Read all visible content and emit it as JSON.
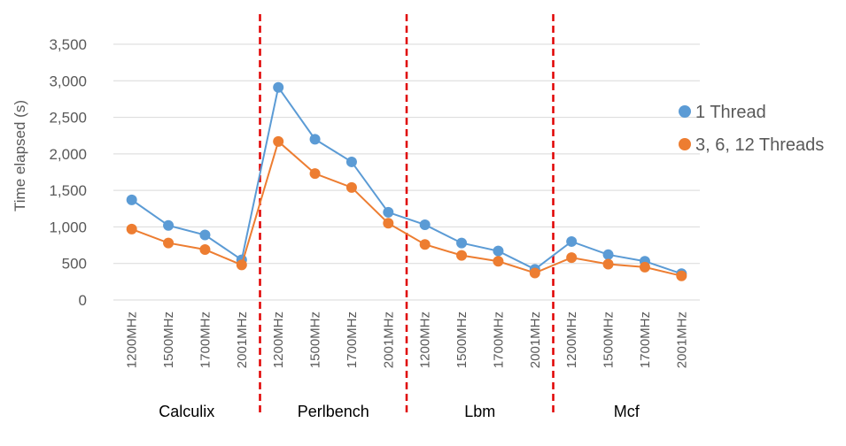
{
  "chart_data": {
    "type": "line",
    "ylabel": "Time elapsed (s)",
    "ylim": [
      0,
      3500
    ],
    "yticks": [
      "0",
      "500",
      "1,000",
      "1,500",
      "2,000",
      "2,500",
      "3,000",
      "3,500"
    ],
    "grid": true,
    "legend_position": "right",
    "groups": [
      {
        "name": "Calculix",
        "categories": [
          "1200MHz",
          "1500MHz",
          "1700MHz",
          "2001MHz"
        ]
      },
      {
        "name": "Perlbench",
        "categories": [
          "1200MHz",
          "1500MHz",
          "1700MHz",
          "2001MHz"
        ]
      },
      {
        "name": "Lbm",
        "categories": [
          "1200MHz",
          "1500MHz",
          "1700MHz",
          "2001MHz"
        ]
      },
      {
        "name": "Mcf",
        "categories": [
          "1200MHz",
          "1500MHz",
          "1700MHz",
          "2001MHz"
        ]
      }
    ],
    "categories": [
      "1200MHz",
      "1500MHz",
      "1700MHz",
      "2001MHz",
      "1200MHz",
      "1500MHz",
      "1700MHz",
      "2001MHz",
      "1200MHz",
      "1500MHz",
      "1700MHz",
      "2001MHz",
      "1200MHz",
      "1500MHz",
      "1700MHz",
      "2001MHz"
    ],
    "series": [
      {
        "name": "1 Thread",
        "color": "#5b9bd5",
        "values": [
          1370,
          1020,
          890,
          550,
          2910,
          2200,
          1890,
          1200,
          1030,
          780,
          670,
          420,
          800,
          620,
          530,
          360
        ]
      },
      {
        "name": "3, 6, 12 Threads",
        "color": "#ed7d31",
        "values": [
          970,
          780,
          690,
          480,
          2170,
          1730,
          1540,
          1050,
          760,
          610,
          530,
          370,
          580,
          490,
          450,
          330
        ]
      }
    ],
    "separator_color": "#e00000"
  }
}
